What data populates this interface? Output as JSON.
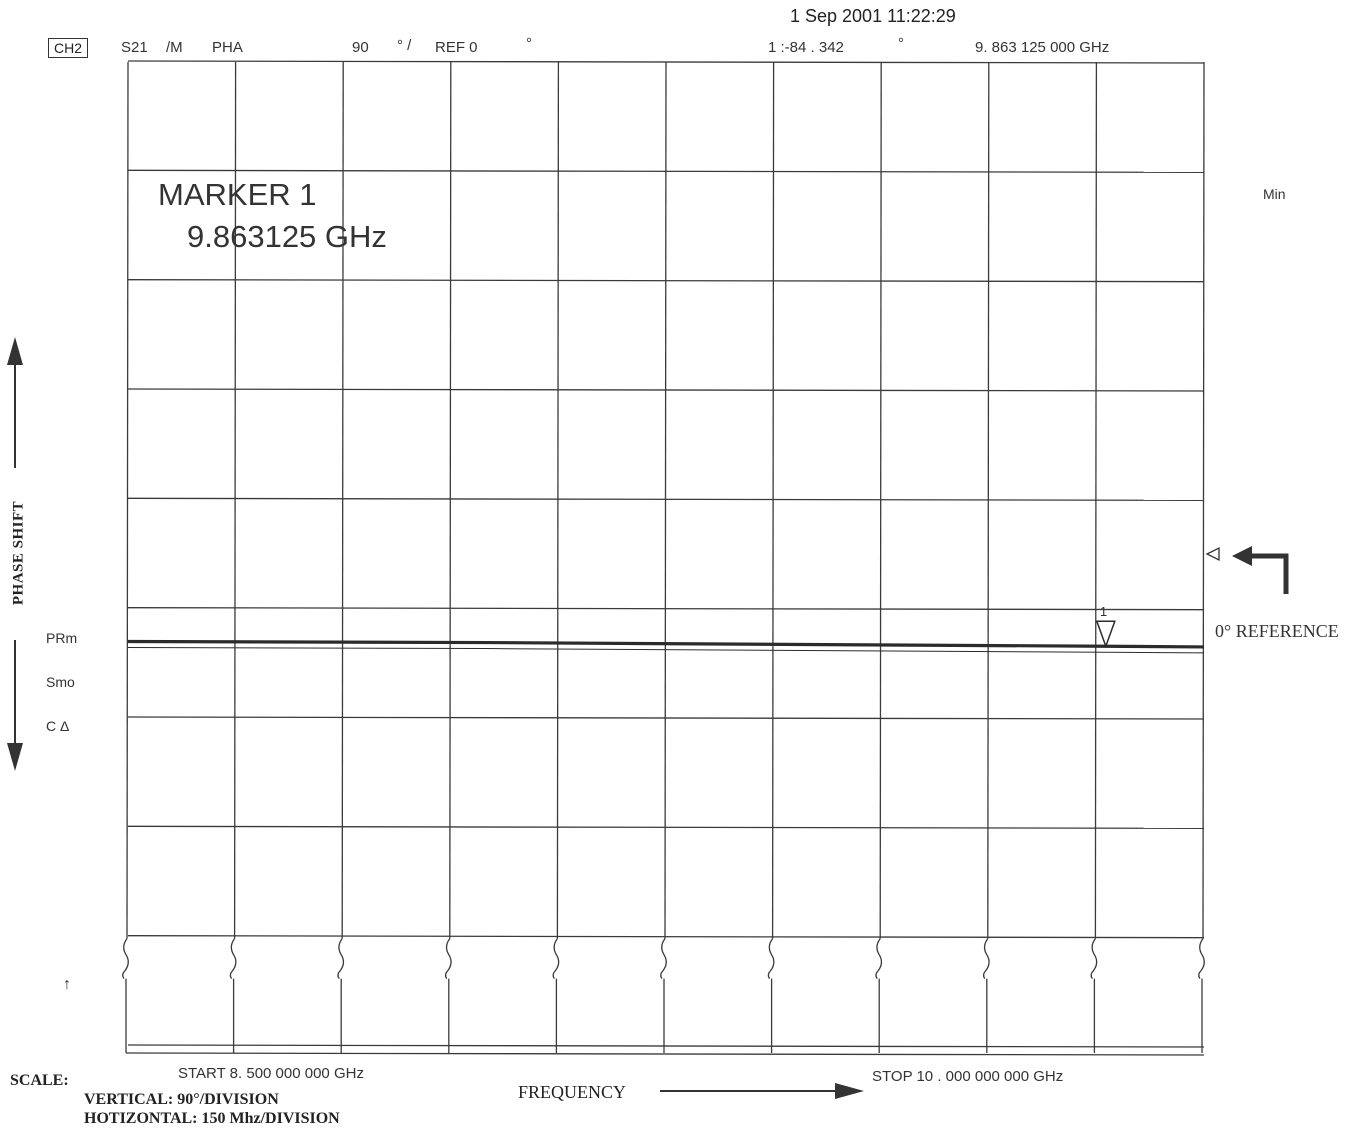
{
  "header": {
    "datetime": "1 Sep 2001   11:22:29",
    "channel": "CH2",
    "param": "S21",
    "mode": "/M",
    "format": "PHA",
    "scale_value": "90",
    "scale_unit": "° /",
    "ref": "REF 0",
    "ref_unit": "°",
    "marker_readout": "1 :-84   . 342",
    "marker_readout_unit": "°",
    "marker_freq": "9. 863    125     000    GHz"
  },
  "annotation": {
    "marker_title": "MARKER 1",
    "marker_value": "9.863125 GHz"
  },
  "right": {
    "min_label": "Min",
    "reference_label": "0° REFERENCE"
  },
  "left": {
    "axis_title": "PHASE SHIFT",
    "status": [
      "PRm",
      "Smo",
      "C Δ"
    ],
    "small_arrow": "↑"
  },
  "footer": {
    "start": "START      8. 500     000     000     GHz",
    "stop": "STOP    10 . 000     000     000     GHz",
    "frequency_label": "FREQUENCY",
    "scale_title": "SCALE:",
    "vertical": "VERTICAL: 90°/DIVISION",
    "horizontal": "HOTIZONTAL: 150 Mhz/DIVISION"
  },
  "chart_data": {
    "type": "line",
    "x_unit": "GHz",
    "y_unit": "°",
    "xlim": [
      8.5,
      10.0
    ],
    "ylim": [
      -450,
      450
    ],
    "x_divisions": 10,
    "y_divisions": 9,
    "reference_value": 0,
    "series": [
      {
        "x": [
          8.5,
          9.0,
          9.5,
          9.863125,
          10.0
        ],
        "y": [
          -80,
          -81,
          -83,
          -84.342,
          -85
        ]
      }
    ],
    "marker": {
      "label": "1",
      "x": 9.863125,
      "y": -84.342
    },
    "grid": true,
    "colors": {
      "trace": "#2b2b2b",
      "grid": "#3a3a3a",
      "text": "#333333"
    }
  }
}
